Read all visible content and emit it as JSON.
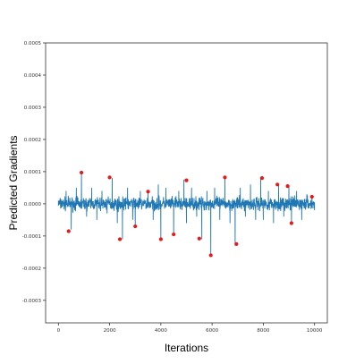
{
  "chart_data": {
    "type": "line",
    "xlabel": "Iterations",
    "ylabel": "Predicted Gradients",
    "xlim": [
      -500,
      10500
    ],
    "ylim": [
      -0.00037,
      0.0005
    ],
    "x_ticks": [
      0,
      2000,
      4000,
      6000,
      8000,
      10000
    ],
    "x_tick_labels": [
      "0",
      "2000",
      "4000",
      "6000",
      "8000",
      "10000"
    ],
    "y_ticks": [
      0.0005,
      0.0004,
      0.0003,
      0.0002,
      0.0001,
      0.0,
      -0.0001,
      -0.0002,
      -0.0003
    ],
    "y_tick_labels": [
      "0.0005",
      "0.0004",
      "0.0003",
      "0.0002",
      "0.0001",
      "0.0000",
      "-0.0001",
      "-0.0002",
      "-0.0003"
    ],
    "grid": false,
    "series": [
      {
        "kind": "line",
        "color": "#1f77b4",
        "x_range": [
          0,
          10000
        ],
        "baseline": 0.0,
        "typical_amplitude": 3e-05,
        "x": [
          0,
          300,
          500,
          700,
          900,
          1100,
          1300,
          1500,
          1700,
          1900,
          2100,
          2300,
          2500,
          2700,
          2900,
          3000,
          3200,
          3500,
          3700,
          3900,
          4000,
          4200,
          4500,
          4700,
          4900,
          5000,
          5200,
          5400,
          5600,
          5800,
          5950,
          6100,
          6300,
          6500,
          6700,
          6900,
          7100,
          7300,
          7500,
          7700,
          7900,
          8000,
          8200,
          8400,
          8600,
          8800,
          9000,
          9100,
          9300,
          9500,
          9700,
          9900,
          10000
        ],
        "y": [
          1e-05,
          4e-05,
          -8e-05,
          5e-05,
          9.5e-05,
          -4e-05,
          5e-05,
          -5e-05,
          4e-05,
          -3e-05,
          8e-05,
          -6e-05,
          -0.00011,
          5e-05,
          -5e-05,
          -7e-05,
          4e-05,
          4e-05,
          -5e-05,
          6e-05,
          -0.00011,
          5e-05,
          -0.0001,
          4e-05,
          7.5e-05,
          -6e-05,
          5e-05,
          -4e-05,
          -0.00011,
          4e-05,
          -0.00016,
          5e-05,
          -5e-05,
          8e-05,
          -6e-05,
          -0.00013,
          5e-05,
          -4e-05,
          6e-05,
          -5e-05,
          8e-05,
          -5e-05,
          4e-05,
          -6e-05,
          6e-05,
          -4e-05,
          5.5e-05,
          -6e-05,
          4e-05,
          -5e-05,
          3e-05,
          2.5e-05,
          -2e-05
        ]
      },
      {
        "kind": "scatter",
        "color": "#e41a1c",
        "x": [
          400,
          900,
          2000,
          2400,
          3000,
          3500,
          4000,
          4500,
          5000,
          5500,
          5950,
          6500,
          6950,
          7950,
          8550,
          8950,
          9100,
          9900
        ],
        "y": [
          -8.5e-05,
          9.7e-05,
          8.2e-05,
          -0.00011,
          -7e-05,
          3.8e-05,
          -0.00011,
          -9.5e-05,
          7.3e-05,
          -0.000108,
          -0.00016,
          8.2e-05,
          -0.000125,
          8e-05,
          6e-05,
          5.5e-05,
          -6e-05,
          2.2e-05
        ]
      }
    ]
  }
}
